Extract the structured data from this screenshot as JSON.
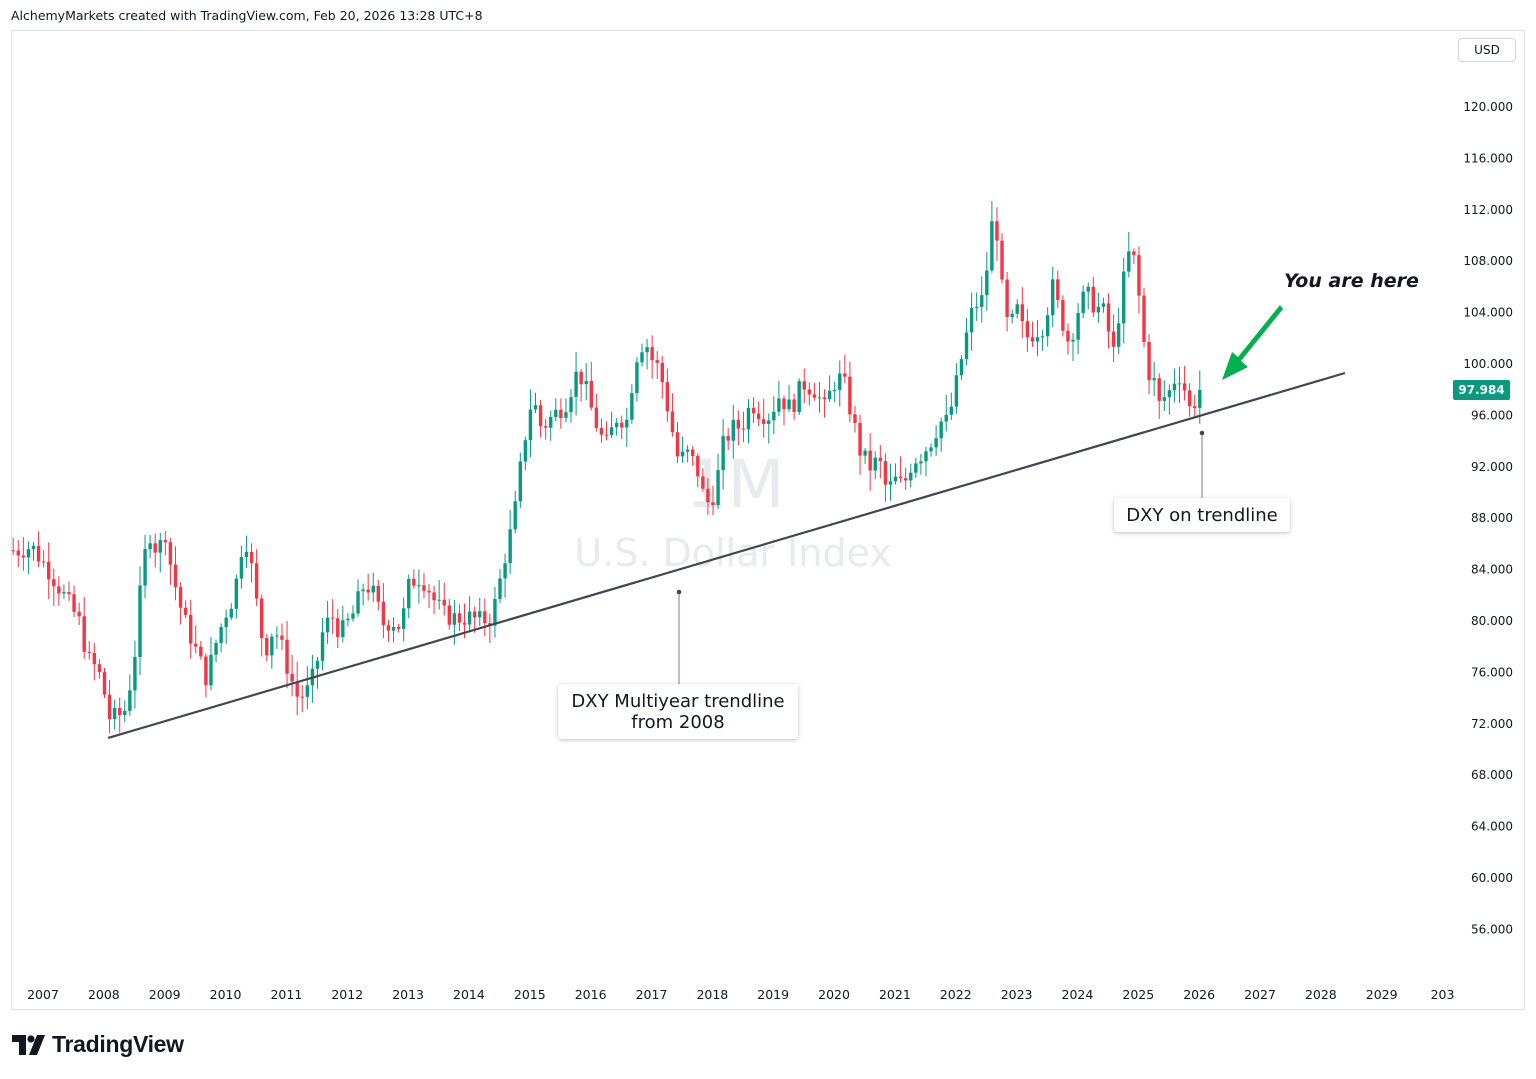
{
  "header": {
    "attribution": "AlchemyMarkets created with TradingView.com, Feb 20, 2026 13:28 UTC+8"
  },
  "chart_data": {
    "type": "candlestick",
    "symbol": "U.S. Dollar Index",
    "interval": "1M",
    "currency": "USD",
    "last_price": "97.984",
    "x_axis_labels": [
      "2007",
      "2008",
      "2009",
      "2010",
      "2011",
      "2012",
      "2013",
      "2014",
      "2015",
      "2016",
      "2017",
      "2018",
      "2019",
      "2020",
      "2021",
      "2022",
      "2023",
      "2024",
      "2025",
      "2026",
      "2027",
      "2028",
      "2029",
      "203"
    ],
    "y_axis_labels": [
      "120.000",
      "116.000",
      "112.000",
      "108.000",
      "104.000",
      "100.000",
      "96.000",
      "92.000",
      "88.000",
      "84.000",
      "80.000",
      "76.000",
      "72.000",
      "68.000",
      "64.000",
      "60.000",
      "56.000"
    ],
    "ylim": [
      52.5,
      124
    ],
    "xlim": [
      2006.6,
      2030.2
    ],
    "closes": [
      [
        2006.7,
        85.5
      ],
      [
        2006.92,
        85.8
      ],
      [
        2007.2,
        84.0
      ],
      [
        2007.45,
        82.0
      ],
      [
        2007.7,
        80.0
      ],
      [
        2007.85,
        77.0
      ],
      [
        2007.95,
        76.5
      ],
      [
        2008.07,
        75.5
      ],
      [
        2008.2,
        72.5
      ],
      [
        2008.32,
        72.5
      ],
      [
        2008.45,
        73.0
      ],
      [
        2008.6,
        76.5
      ],
      [
        2008.75,
        84.5
      ],
      [
        2008.88,
        87.0
      ],
      [
        2009.0,
        85.0
      ],
      [
        2009.1,
        87.5
      ],
      [
        2009.22,
        84.0
      ],
      [
        2009.4,
        80.5
      ],
      [
        2009.6,
        78.0
      ],
      [
        2009.8,
        75.5
      ],
      [
        2009.92,
        77.8
      ],
      [
        2010.1,
        80.5
      ],
      [
        2010.25,
        82.0
      ],
      [
        2010.4,
        86.5
      ],
      [
        2010.48,
        86.0
      ],
      [
        2010.6,
        82.0
      ],
      [
        2010.75,
        77.5
      ],
      [
        2010.9,
        79.5
      ],
      [
        2011.0,
        78.5
      ],
      [
        2011.15,
        76.0
      ],
      [
        2011.3,
        74.0
      ],
      [
        2011.45,
        74.5
      ],
      [
        2011.58,
        76.0
      ],
      [
        2011.7,
        79.0
      ],
      [
        2011.85,
        80.5
      ],
      [
        2012.0,
        79.0
      ],
      [
        2012.2,
        80.5
      ],
      [
        2012.4,
        83.0
      ],
      [
        2012.55,
        82.0
      ],
      [
        2012.7,
        79.8
      ],
      [
        2012.85,
        80.0
      ],
      [
        2013.0,
        79.5
      ],
      [
        2013.1,
        82.5
      ],
      [
        2013.25,
        83.5
      ],
      [
        2013.4,
        83.0
      ],
      [
        2013.55,
        81.5
      ],
      [
        2013.7,
        80.5
      ],
      [
        2013.9,
        80.2
      ],
      [
        2014.1,
        80.3
      ],
      [
        2014.3,
        80.0
      ],
      [
        2014.45,
        80.2
      ],
      [
        2014.55,
        81.5
      ],
      [
        2014.7,
        85.0
      ],
      [
        2014.85,
        88.0
      ],
      [
        2015.0,
        93.5
      ],
      [
        2015.15,
        97.5
      ],
      [
        2015.3,
        95.0
      ],
      [
        2015.5,
        96.0
      ],
      [
        2015.7,
        97.0
      ],
      [
        2015.9,
        99.5
      ],
      [
        2016.0,
        98.5
      ],
      [
        2016.15,
        96.0
      ],
      [
        2016.35,
        93.5
      ],
      [
        2016.55,
        96.0
      ],
      [
        2016.7,
        95.5
      ],
      [
        2016.85,
        100.5
      ],
      [
        2017.0,
        102.0
      ],
      [
        2017.1,
        100.5
      ],
      [
        2017.25,
        99.5
      ],
      [
        2017.4,
        96.0
      ],
      [
        2017.55,
        92.5
      ],
      [
        2017.7,
        93.0
      ],
      [
        2017.85,
        92.0
      ],
      [
        2018.0,
        89.0
      ],
      [
        2018.15,
        90.0
      ],
      [
        2018.3,
        94.0
      ],
      [
        2018.45,
        95.0
      ],
      [
        2018.6,
        95.2
      ],
      [
        2018.75,
        97.0
      ],
      [
        2018.9,
        96.2
      ],
      [
        2019.05,
        96.0
      ],
      [
        2019.2,
        97.5
      ],
      [
        2019.4,
        96.5
      ],
      [
        2019.6,
        98.5
      ],
      [
        2019.8,
        98.0
      ],
      [
        2019.95,
        96.5
      ],
      [
        2020.1,
        98.5
      ],
      [
        2020.25,
        99.0
      ],
      [
        2020.4,
        96.0
      ],
      [
        2020.55,
        93.0
      ],
      [
        2020.7,
        92.0
      ],
      [
        2020.85,
        92.5
      ],
      [
        2020.98,
        90.0
      ],
      [
        2021.1,
        91.0
      ],
      [
        2021.25,
        90.5
      ],
      [
        2021.4,
        92.5
      ],
      [
        2021.55,
        93.0
      ],
      [
        2021.7,
        94.0
      ],
      [
        2021.85,
        95.5
      ],
      [
        2021.98,
        95.5
      ],
      [
        2022.1,
        98.0
      ],
      [
        2022.25,
        101.5
      ],
      [
        2022.4,
        104.5
      ],
      [
        2022.55,
        105.0
      ],
      [
        2022.65,
        108.5
      ],
      [
        2022.72,
        111.5
      ],
      [
        2022.8,
        110.0
      ],
      [
        2022.9,
        104.0
      ],
      [
        2023.0,
        102.5
      ],
      [
        2023.1,
        104.5
      ],
      [
        2023.25,
        102.0
      ],
      [
        2023.4,
        102.5
      ],
      [
        2023.55,
        103.0
      ],
      [
        2023.7,
        106.0
      ],
      [
        2023.85,
        103.5
      ],
      [
        2023.98,
        101.5
      ],
      [
        2024.1,
        104.0
      ],
      [
        2024.25,
        105.5
      ],
      [
        2024.4,
        104.5
      ],
      [
        2024.55,
        104.0
      ],
      [
        2024.7,
        100.8
      ],
      [
        2024.85,
        106.0
      ],
      [
        2024.95,
        108.5
      ],
      [
        2025.05,
        108.0
      ],
      [
        2025.15,
        104.0
      ],
      [
        2025.25,
        99.5
      ],
      [
        2025.35,
        99.0
      ],
      [
        2025.45,
        96.8
      ],
      [
        2025.55,
        97.5
      ],
      [
        2025.65,
        98.0
      ],
      [
        2025.75,
        99.5
      ],
      [
        2025.85,
        98.5
      ],
      [
        2025.95,
        96.5
      ],
      [
        2026.05,
        97.2
      ],
      [
        2026.12,
        97.984
      ]
    ],
    "trendline": {
      "x1": 2008.18,
      "y1": 70.9,
      "x2": 2030.3,
      "y2": 99.0,
      "color": "#434651"
    },
    "colors": {
      "up": "#089981",
      "down": "#f23645",
      "arrow": "#00b050",
      "grid": "#ffffff"
    },
    "annotations": [
      {
        "text_lines": [
          "DXY Multiyear trendline",
          "from 2008"
        ],
        "anchor": [
          2017.4,
          82.4
        ]
      },
      {
        "text_lines": [
          "DXY on trendline"
        ],
        "anchor": [
          2026.0,
          94.6
        ]
      }
    ],
    "arrow_label": "You are here"
  },
  "watermark": {
    "interval": "1M",
    "name": "U.S. Dollar Index"
  },
  "footer": {
    "brand": "TradingView"
  }
}
